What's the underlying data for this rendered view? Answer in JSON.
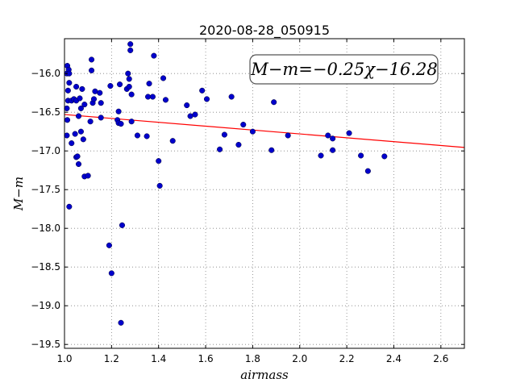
{
  "chart_data": {
    "type": "scatter",
    "title": "2020-08-28_050915",
    "xlabel": "airmass",
    "ylabel": "M−m",
    "xlim": [
      1.0,
      2.7
    ],
    "ylim": [
      -19.55,
      -15.55
    ],
    "x_ticks": [
      1.0,
      1.2,
      1.4,
      1.6,
      1.8,
      2.0,
      2.2,
      2.4,
      2.6
    ],
    "x_tick_labels": [
      "1.0",
      "1.2",
      "1.4",
      "1.6",
      "1.8",
      "2.0",
      "2.2",
      "2.4",
      "2.6"
    ],
    "y_ticks": [
      -16.0,
      -16.5,
      -17.0,
      -17.5,
      -18.0,
      -18.5,
      -19.0,
      -19.5
    ],
    "y_tick_labels": [
      "−16.0",
      "−16.5",
      "−17.0",
      "−17.5",
      "−18.0",
      "−18.5",
      "−19.0",
      "−19.5"
    ],
    "grid": true,
    "annotation": {
      "label": "M−m=−0.25χ−16.28",
      "position": "top-right"
    },
    "fit_line": {
      "slope": -0.25,
      "intercept": -16.28,
      "color": "#ff0000"
    },
    "marker_color": "#0000cc",
    "points": [
      [
        1.01,
        -16.0
      ],
      [
        1.012,
        -15.9
      ],
      [
        1.015,
        -16.35
      ],
      [
        1.01,
        -16.45
      ],
      [
        1.012,
        -16.6
      ],
      [
        1.01,
        -16.8
      ],
      [
        1.015,
        -16.22
      ],
      [
        1.018,
        -15.95
      ],
      [
        1.02,
        -16.12
      ],
      [
        1.02,
        -16.0
      ],
      [
        1.03,
        -16.35
      ],
      [
        1.03,
        -16.9
      ],
      [
        1.02,
        -17.72
      ],
      [
        1.04,
        -16.33
      ],
      [
        1.045,
        -16.78
      ],
      [
        1.05,
        -16.17
      ],
      [
        1.05,
        -16.35
      ],
      [
        1.05,
        -17.08
      ],
      [
        1.055,
        -17.07
      ],
      [
        1.06,
        -17.17
      ],
      [
        1.06,
        -16.55
      ],
      [
        1.065,
        -16.32
      ],
      [
        1.07,
        -16.45
      ],
      [
        1.07,
        -16.75
      ],
      [
        1.075,
        -16.2
      ],
      [
        1.08,
        -16.85
      ],
      [
        1.085,
        -16.4
      ],
      [
        1.085,
        -17.33
      ],
      [
        1.1,
        -17.32
      ],
      [
        1.11,
        -16.62
      ],
      [
        1.115,
        -15.96
      ],
      [
        1.115,
        -15.82
      ],
      [
        1.12,
        -16.38
      ],
      [
        1.125,
        -16.33
      ],
      [
        1.13,
        -16.23
      ],
      [
        1.15,
        -16.25
      ],
      [
        1.155,
        -16.57
      ],
      [
        1.155,
        -16.38
      ],
      [
        1.19,
        -18.22
      ],
      [
        1.195,
        -16.16
      ],
      [
        1.2,
        -18.58
      ],
      [
        1.225,
        -16.6
      ],
      [
        1.23,
        -16.49
      ],
      [
        1.23,
        -16.64
      ],
      [
        1.235,
        -16.14
      ],
      [
        1.24,
        -16.65
      ],
      [
        1.24,
        -19.22
      ],
      [
        1.245,
        -17.96
      ],
      [
        1.265,
        -16.2
      ],
      [
        1.27,
        -16.0
      ],
      [
        1.275,
        -16.07
      ],
      [
        1.275,
        -16.17
      ],
      [
        1.28,
        -15.62
      ],
      [
        1.28,
        -15.7
      ],
      [
        1.285,
        -16.27
      ],
      [
        1.285,
        -16.62
      ],
      [
        1.31,
        -16.8
      ],
      [
        1.35,
        -16.81
      ],
      [
        1.355,
        -16.3
      ],
      [
        1.36,
        -16.13
      ],
      [
        1.375,
        -16.3
      ],
      [
        1.38,
        -15.77
      ],
      [
        1.4,
        -17.13
      ],
      [
        1.405,
        -17.45
      ],
      [
        1.42,
        -16.06
      ],
      [
        1.43,
        -16.34
      ],
      [
        1.46,
        -16.87
      ],
      [
        1.52,
        -16.41
      ],
      [
        1.535,
        -16.55
      ],
      [
        1.555,
        -16.53
      ],
      [
        1.585,
        -16.22
      ],
      [
        1.605,
        -16.33
      ],
      [
        1.66,
        -16.98
      ],
      [
        1.68,
        -16.79
      ],
      [
        1.71,
        -16.3
      ],
      [
        1.74,
        -16.92
      ],
      [
        1.76,
        -16.66
      ],
      [
        1.8,
        -16.75
      ],
      [
        1.88,
        -16.99
      ],
      [
        1.89,
        -16.37
      ],
      [
        1.95,
        -16.8
      ],
      [
        2.09,
        -17.06
      ],
      [
        2.12,
        -16.8
      ],
      [
        2.14,
        -16.99
      ],
      [
        2.14,
        -16.84
      ],
      [
        2.21,
        -16.77
      ],
      [
        2.26,
        -17.06
      ],
      [
        2.29,
        -17.26
      ],
      [
        2.36,
        -17.07
      ]
    ]
  }
}
